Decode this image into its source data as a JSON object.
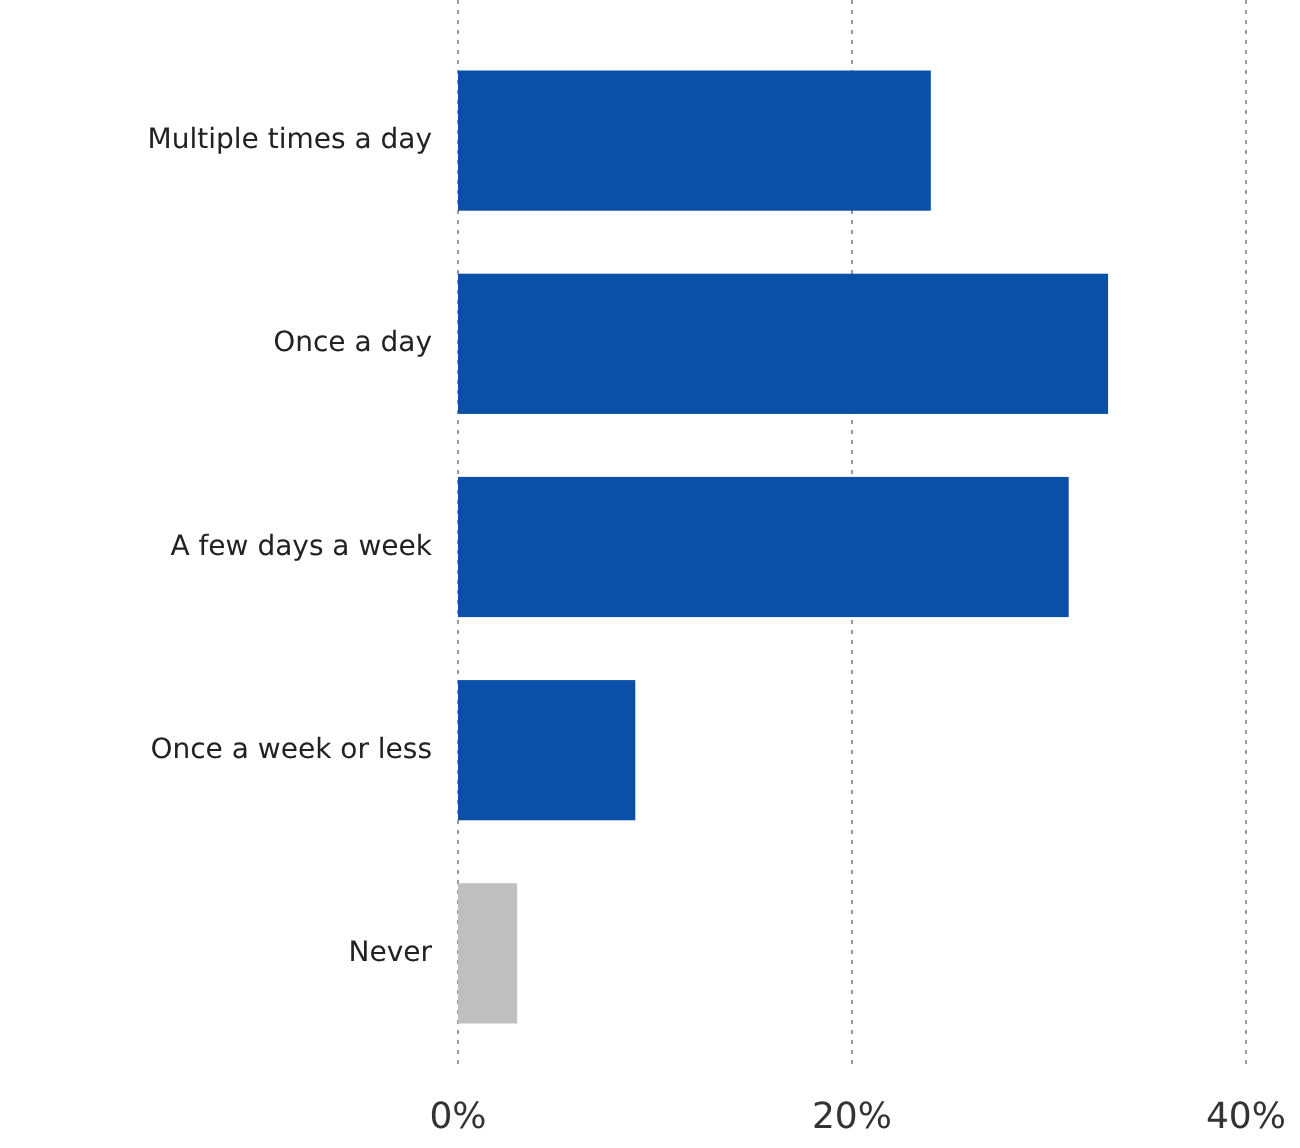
{
  "chart_data": {
    "type": "bar",
    "orientation": "horizontal",
    "categories": [
      "Multiple times a day",
      "Once a day",
      "A few days a week",
      "Once a week or less",
      "Never"
    ],
    "values": [
      24,
      33,
      31,
      9,
      3
    ],
    "colors": [
      "#0a4fa8",
      "#0a4fa8",
      "#0a4fa8",
      "#0a4fa8",
      "#bfbfbf"
    ],
    "xlim": [
      0,
      40
    ],
    "xticks": [
      {
        "value": 0,
        "label": "0%"
      },
      {
        "value": 20,
        "label": "20%"
      },
      {
        "value": 40,
        "label": "40%"
      }
    ],
    "grid": "x"
  }
}
